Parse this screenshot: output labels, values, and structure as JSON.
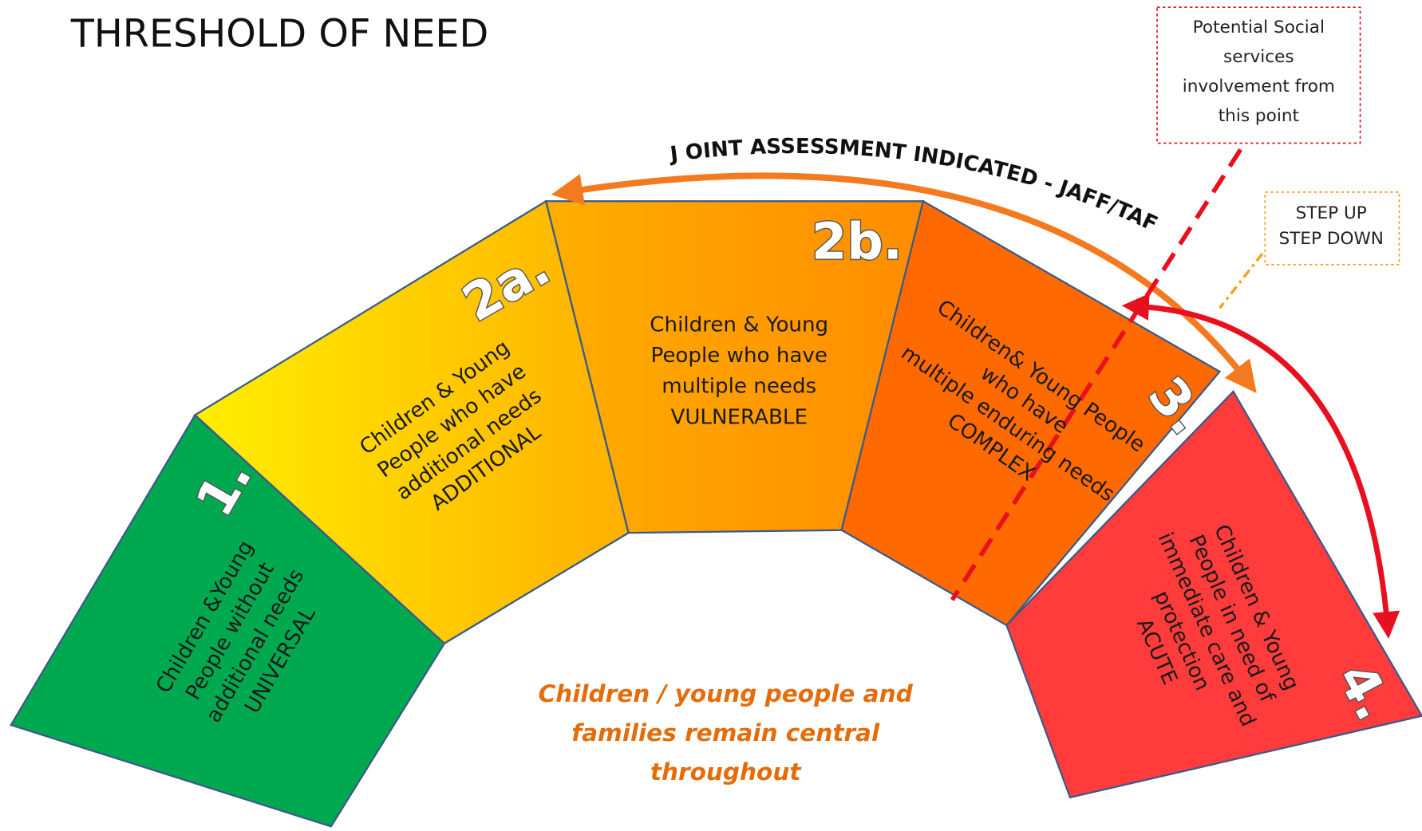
{
  "title": "THRESHOLD OF NEED",
  "segments": [
    {
      "number": "1.",
      "lines": [
        "Children &Young",
        "People without",
        "additional needs",
        "UNIVERSAL"
      ]
    },
    {
      "number": "2a.",
      "lines": [
        "Children & Young",
        "People who have",
        "additional needs",
        "ADDITIONAL"
      ]
    },
    {
      "number": "2b.",
      "lines": [
        "Children & Young",
        "People who have",
        "multiple needs",
        "VULNERABLE"
      ]
    },
    {
      "number": "3.",
      "lines": [
        "Children& Young People",
        "who have",
        "multiple enduring needs",
        "COMPLEX"
      ]
    },
    {
      "number": "4.",
      "lines": [
        "Children & Young",
        "People in need of",
        "immediate care and",
        "protection",
        "ACUTE"
      ]
    }
  ],
  "arc_label": "J OINT ASSESSMENT INDICATED - JAFF/TAF",
  "social_callout": {
    "lines": [
      "Potential Social",
      "services",
      "involvement from",
      "this point"
    ]
  },
  "step_callout": {
    "lines": [
      "STEP UP",
      "STEP DOWN"
    ]
  },
  "central_note": {
    "lines": [
      "Children / young people and",
      "families remain central",
      "throughout"
    ]
  }
}
